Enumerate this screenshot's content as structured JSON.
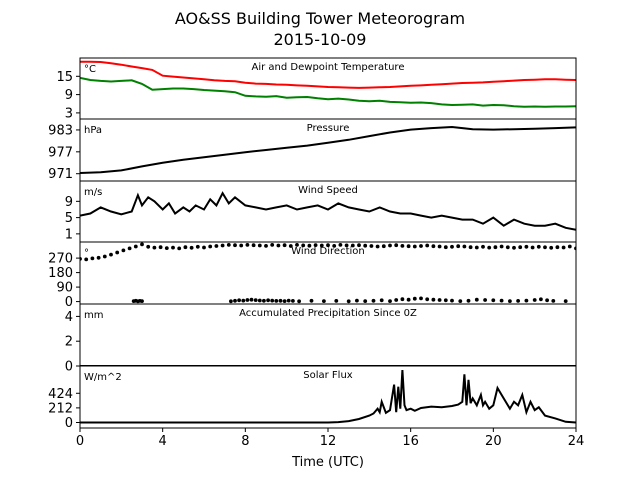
{
  "figure": {
    "title_line1": "AO&SS Building Tower Meteorogram",
    "title_line2": "2015-10-09",
    "xlabel": "Time (UTC)",
    "x_ticks": [
      0,
      4,
      8,
      12,
      16,
      20,
      24
    ],
    "xlim": [
      0,
      24
    ]
  },
  "chart_data": [
    {
      "type": "line",
      "title": "Air and Dewpoint Temperature",
      "unit_label": "°C",
      "ylim": [
        1,
        21
      ],
      "y_ticks": [
        3,
        9,
        15
      ],
      "series": [
        {
          "color": "#ff0000",
          "x": [
            0,
            0.5,
            1,
            1.5,
            2,
            2.5,
            3,
            3.5,
            4,
            4.5,
            5,
            5.5,
            6,
            6.5,
            7,
            7.5,
            8,
            8.5,
            9,
            9.5,
            10,
            10.5,
            11,
            11.5,
            12,
            12.5,
            13,
            13.5,
            14,
            14.5,
            15,
            15.5,
            16,
            16.5,
            17,
            17.5,
            18,
            18.5,
            19,
            19.5,
            20,
            20.5,
            21,
            21.5,
            22,
            22.5,
            23,
            23.5,
            24
          ],
          "y": [
            19.8,
            19.8,
            19.7,
            19.3,
            18.8,
            18.2,
            17.7,
            17.1,
            15.2,
            14.9,
            14.6,
            14.3,
            14.0,
            13.7,
            13.5,
            13.4,
            12.9,
            12.6,
            12.5,
            12.3,
            12.2,
            12.0,
            11.9,
            11.7,
            11.5,
            11.4,
            11.3,
            11.2,
            11.3,
            11.4,
            11.5,
            11.7,
            11.9,
            12.0,
            12.2,
            12.4,
            12.6,
            12.8,
            12.9,
            13.0,
            13.2,
            13.4,
            13.6,
            13.8,
            13.9,
            14.0,
            14.0,
            13.9,
            13.8
          ]
        },
        {
          "color": "#008000",
          "x": [
            0,
            0.5,
            1,
            1.5,
            2,
            2.5,
            3,
            3.5,
            4,
            4.5,
            5,
            5.5,
            6,
            6.5,
            7,
            7.5,
            8,
            8.5,
            9,
            9.5,
            10,
            10.5,
            11,
            11.5,
            12,
            12.5,
            13,
            13.5,
            14,
            14.5,
            15,
            15.5,
            16,
            16.5,
            17,
            17.5,
            18,
            18.5,
            19,
            19.5,
            20,
            20.5,
            21,
            21.5,
            22,
            22.5,
            23,
            23.5,
            24
          ],
          "y": [
            14.5,
            13.8,
            13.5,
            13.3,
            13.5,
            13.7,
            12.5,
            10.6,
            10.8,
            11.0,
            11.0,
            10.8,
            10.5,
            10.3,
            10.1,
            9.8,
            8.6,
            8.4,
            8.3,
            8.5,
            8.0,
            8.1,
            8.2,
            7.8,
            7.5,
            7.7,
            7.4,
            7.0,
            6.8,
            7.0,
            6.6,
            6.5,
            6.3,
            6.4,
            6.2,
            5.8,
            5.6,
            5.7,
            5.8,
            5.4,
            5.6,
            5.5,
            5.2,
            5.0,
            5.1,
            5.0,
            5.1,
            5.1,
            5.2
          ]
        }
      ]
    },
    {
      "type": "line",
      "title": "Pressure",
      "unit_label": "hPa",
      "ylim": [
        969,
        986
      ],
      "y_ticks": [
        971,
        977,
        983
      ],
      "series": [
        {
          "color": "#000000",
          "x": [
            0,
            1,
            2,
            3,
            4,
            5,
            6,
            7,
            8,
            9,
            10,
            11,
            12,
            13,
            14,
            15,
            16,
            17,
            18,
            19,
            20,
            21,
            22,
            23,
            24
          ],
          "y": [
            971.2,
            971.4,
            971.9,
            973.0,
            974.0,
            974.8,
            975.5,
            976.2,
            976.9,
            977.5,
            978.1,
            978.7,
            979.5,
            980.3,
            981.3,
            982.3,
            983.1,
            983.5,
            983.8,
            983.2,
            983.1,
            983.2,
            983.3,
            983.5,
            983.7
          ]
        }
      ]
    },
    {
      "type": "line",
      "title": "Wind Speed",
      "unit_label": "m/s",
      "ylim": [
        -1,
        14
      ],
      "y_ticks": [
        1,
        5,
        9
      ],
      "series": [
        {
          "color": "#000000",
          "x": [
            0,
            0.5,
            1,
            1.5,
            2,
            2.5,
            2.8,
            3,
            3.3,
            3.6,
            4,
            4.3,
            4.6,
            5,
            5.3,
            5.6,
            6,
            6.3,
            6.6,
            6.9,
            7.2,
            7.5,
            8,
            8.5,
            9,
            9.5,
            10,
            10.5,
            11,
            11.5,
            12,
            12.5,
            13,
            13.5,
            14,
            14.5,
            15,
            15.5,
            16,
            16.5,
            17,
            17.5,
            18,
            18.5,
            19,
            19.5,
            20,
            20.5,
            21,
            21.5,
            22,
            22.5,
            23,
            23.5,
            24
          ],
          "y": [
            5.5,
            6.0,
            7.5,
            6.5,
            5.8,
            6.5,
            10.5,
            8.0,
            10.0,
            9.0,
            7.0,
            8.5,
            6.0,
            7.5,
            6.5,
            8.0,
            7.0,
            9.5,
            8.0,
            11.0,
            8.5,
            10.0,
            8.0,
            7.5,
            7.0,
            7.5,
            8.0,
            7.0,
            7.5,
            8.0,
            7.0,
            8.5,
            7.5,
            7.0,
            6.5,
            7.5,
            6.5,
            6.0,
            6.0,
            5.5,
            5.0,
            5.5,
            5.0,
            4.5,
            4.5,
            3.5,
            5.0,
            3.0,
            4.5,
            3.5,
            3.0,
            3.0,
            3.5,
            2.5,
            2.0
          ]
        }
      ]
    },
    {
      "type": "scatter",
      "title": "Wind Direction",
      "unit_label": "°",
      "ylim": [
        -15,
        370
      ],
      "y_ticks": [
        0,
        90,
        180,
        270
      ],
      "series": [
        {
          "color": "#000000",
          "x": [
            0,
            0.3,
            0.6,
            0.9,
            1.2,
            1.5,
            1.8,
            2.1,
            2.4,
            2.7,
            3.0,
            3.3,
            3.6,
            3.9,
            4.2,
            4.5,
            4.8,
            5.1,
            5.4,
            5.7,
            6.0,
            6.3,
            6.6,
            6.9,
            7.2,
            7.5,
            7.8,
            8.1,
            8.4,
            8.7,
            9.0,
            9.3,
            9.6,
            9.9,
            10.2,
            10.5,
            10.8,
            11.1,
            11.4,
            11.7,
            12.0,
            12.3,
            12.6,
            12.9,
            13.2,
            13.5,
            13.8,
            14.1,
            14.4,
            14.7,
            15.0,
            15.3,
            15.6,
            15.9,
            16.2,
            16.5,
            16.8,
            17.1,
            17.4,
            17.7,
            18.0,
            18.3,
            18.6,
            18.9,
            19.2,
            19.5,
            19.8,
            20.1,
            20.4,
            20.7,
            21.0,
            21.3,
            21.6,
            21.9,
            22.2,
            22.5,
            22.8,
            23.1,
            23.4,
            23.7,
            24.0
          ],
          "y": [
            265,
            262,
            268,
            272,
            280,
            292,
            305,
            318,
            330,
            342,
            355,
            340,
            335,
            338,
            332,
            335,
            330,
            338,
            334,
            340,
            336,
            342,
            345,
            348,
            352,
            350,
            348,
            352,
            350,
            348,
            346,
            352,
            348,
            350,
            345,
            352,
            349,
            347,
            351,
            348,
            350,
            346,
            352,
            349,
            348,
            350,
            347,
            345,
            342,
            344,
            348,
            350,
            346,
            344,
            342,
            345,
            348,
            344,
            342,
            338,
            340,
            344,
            342,
            338,
            336,
            340,
            335,
            338,
            342,
            337,
            334,
            338,
            340,
            336,
            340,
            337,
            334,
            338,
            336,
            342,
            330
          ]
        },
        {
          "color": "#000000",
          "x": [
            2.6,
            2.7,
            2.8,
            2.9,
            3.0,
            7.3,
            7.5,
            7.7,
            7.9,
            8.1,
            8.3,
            8.5,
            8.7,
            8.9,
            9.1,
            9.3,
            9.5,
            9.7,
            9.9,
            10.1,
            10.3,
            10.6,
            11.2,
            11.8,
            12.4,
            13.0,
            13.4,
            13.8,
            14.2,
            14.6,
            15.0,
            15.3,
            15.6,
            15.9,
            16.2,
            16.5,
            16.8,
            17.1,
            17.4,
            17.7,
            18.0,
            18.4,
            18.8,
            19.2,
            19.6,
            20.0,
            20.4,
            20.8,
            21.2,
            21.6,
            22.0,
            22.3,
            22.6,
            22.9,
            23.5
          ],
          "y": [
            3,
            5,
            2,
            4,
            3,
            2,
            5,
            8,
            6,
            10,
            12,
            9,
            7,
            5,
            8,
            6,
            4,
            5,
            3,
            6,
            4,
            2,
            5,
            3,
            4,
            2,
            6,
            3,
            5,
            8,
            3,
            10,
            15,
            12,
            18,
            20,
            14,
            12,
            10,
            8,
            6,
            3,
            5,
            12,
            10,
            8,
            6,
            3,
            4,
            6,
            10,
            14,
            8,
            4,
            3
          ]
        }
      ]
    },
    {
      "type": "line",
      "title": "Accumulated Precipitation Since 0Z",
      "unit_label": "mm",
      "ylim": [
        0,
        5
      ],
      "y_ticks": [
        0,
        2,
        4
      ],
      "series": [
        {
          "color": "#000000",
          "x": [
            0,
            24
          ],
          "y": [
            0,
            0
          ]
        }
      ]
    },
    {
      "type": "line",
      "title": "Solar Flux",
      "unit_label": "W/m^2",
      "ylim": [
        -80,
        820
      ],
      "y_ticks": [
        0,
        212,
        424
      ],
      "series": [
        {
          "color": "#000000",
          "x": [
            0,
            6,
            10,
            11,
            12,
            12.5,
            13,
            13.5,
            14,
            14.2,
            14.4,
            14.5,
            14.6,
            14.8,
            15.0,
            15.2,
            15.3,
            15.4,
            15.5,
            15.6,
            15.7,
            15.8,
            16.0,
            16.2,
            16.5,
            17.0,
            17.5,
            18.0,
            18.3,
            18.5,
            18.6,
            18.7,
            18.8,
            18.9,
            19.0,
            19.2,
            19.4,
            19.5,
            19.6,
            19.8,
            20.0,
            20.2,
            20.5,
            20.8,
            21.0,
            21.2,
            21.4,
            21.6,
            21.8,
            22.0,
            22.2,
            22.5,
            23.0,
            23.5,
            24.0
          ],
          "y": [
            0,
            0,
            0,
            0,
            0,
            5,
            20,
            50,
            100,
            130,
            200,
            150,
            300,
            140,
            180,
            550,
            150,
            520,
            200,
            760,
            250,
            180,
            200,
            170,
            210,
            230,
            220,
            240,
            260,
            300,
            700,
            250,
            620,
            280,
            350,
            250,
            400,
            250,
            300,
            200,
            250,
            500,
            350,
            200,
            300,
            250,
            400,
            150,
            300,
            180,
            220,
            100,
            60,
            10,
            0
          ]
        }
      ]
    }
  ]
}
